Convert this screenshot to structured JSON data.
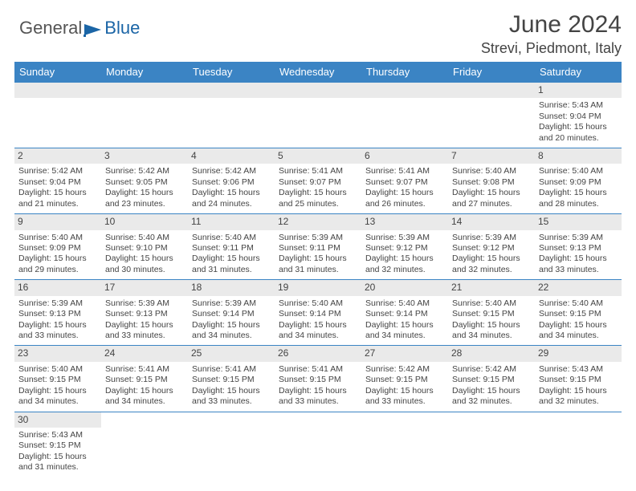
{
  "logo": {
    "text_gray": "General",
    "text_blue": "Blue"
  },
  "header": {
    "title": "June 2024",
    "location": "Strevi, Piedmont, Italy"
  },
  "colors": {
    "header_bar": "#3b84c4",
    "header_text": "#ffffff",
    "daynum_bg": "#eaeaea",
    "border": "#3b84c4",
    "logo_blue": "#1b65a6",
    "logo_gray": "#555555"
  },
  "day_names": [
    "Sunday",
    "Monday",
    "Tuesday",
    "Wednesday",
    "Thursday",
    "Friday",
    "Saturday"
  ],
  "calendar": {
    "first_weekday_index": 6,
    "days_in_month": 30,
    "days": [
      {
        "n": 1,
        "sunrise": "5:43 AM",
        "sunset": "9:04 PM",
        "daylight": "15 hours and 20 minutes."
      },
      {
        "n": 2,
        "sunrise": "5:42 AM",
        "sunset": "9:04 PM",
        "daylight": "15 hours and 21 minutes."
      },
      {
        "n": 3,
        "sunrise": "5:42 AM",
        "sunset": "9:05 PM",
        "daylight": "15 hours and 23 minutes."
      },
      {
        "n": 4,
        "sunrise": "5:42 AM",
        "sunset": "9:06 PM",
        "daylight": "15 hours and 24 minutes."
      },
      {
        "n": 5,
        "sunrise": "5:41 AM",
        "sunset": "9:07 PM",
        "daylight": "15 hours and 25 minutes."
      },
      {
        "n": 6,
        "sunrise": "5:41 AM",
        "sunset": "9:07 PM",
        "daylight": "15 hours and 26 minutes."
      },
      {
        "n": 7,
        "sunrise": "5:40 AM",
        "sunset": "9:08 PM",
        "daylight": "15 hours and 27 minutes."
      },
      {
        "n": 8,
        "sunrise": "5:40 AM",
        "sunset": "9:09 PM",
        "daylight": "15 hours and 28 minutes."
      },
      {
        "n": 9,
        "sunrise": "5:40 AM",
        "sunset": "9:09 PM",
        "daylight": "15 hours and 29 minutes."
      },
      {
        "n": 10,
        "sunrise": "5:40 AM",
        "sunset": "9:10 PM",
        "daylight": "15 hours and 30 minutes."
      },
      {
        "n": 11,
        "sunrise": "5:40 AM",
        "sunset": "9:11 PM",
        "daylight": "15 hours and 31 minutes."
      },
      {
        "n": 12,
        "sunrise": "5:39 AM",
        "sunset": "9:11 PM",
        "daylight": "15 hours and 31 minutes."
      },
      {
        "n": 13,
        "sunrise": "5:39 AM",
        "sunset": "9:12 PM",
        "daylight": "15 hours and 32 minutes."
      },
      {
        "n": 14,
        "sunrise": "5:39 AM",
        "sunset": "9:12 PM",
        "daylight": "15 hours and 32 minutes."
      },
      {
        "n": 15,
        "sunrise": "5:39 AM",
        "sunset": "9:13 PM",
        "daylight": "15 hours and 33 minutes."
      },
      {
        "n": 16,
        "sunrise": "5:39 AM",
        "sunset": "9:13 PM",
        "daylight": "15 hours and 33 minutes."
      },
      {
        "n": 17,
        "sunrise": "5:39 AM",
        "sunset": "9:13 PM",
        "daylight": "15 hours and 33 minutes."
      },
      {
        "n": 18,
        "sunrise": "5:39 AM",
        "sunset": "9:14 PM",
        "daylight": "15 hours and 34 minutes."
      },
      {
        "n": 19,
        "sunrise": "5:40 AM",
        "sunset": "9:14 PM",
        "daylight": "15 hours and 34 minutes."
      },
      {
        "n": 20,
        "sunrise": "5:40 AM",
        "sunset": "9:14 PM",
        "daylight": "15 hours and 34 minutes."
      },
      {
        "n": 21,
        "sunrise": "5:40 AM",
        "sunset": "9:15 PM",
        "daylight": "15 hours and 34 minutes."
      },
      {
        "n": 22,
        "sunrise": "5:40 AM",
        "sunset": "9:15 PM",
        "daylight": "15 hours and 34 minutes."
      },
      {
        "n": 23,
        "sunrise": "5:40 AM",
        "sunset": "9:15 PM",
        "daylight": "15 hours and 34 minutes."
      },
      {
        "n": 24,
        "sunrise": "5:41 AM",
        "sunset": "9:15 PM",
        "daylight": "15 hours and 34 minutes."
      },
      {
        "n": 25,
        "sunrise": "5:41 AM",
        "sunset": "9:15 PM",
        "daylight": "15 hours and 33 minutes."
      },
      {
        "n": 26,
        "sunrise": "5:41 AM",
        "sunset": "9:15 PM",
        "daylight": "15 hours and 33 minutes."
      },
      {
        "n": 27,
        "sunrise": "5:42 AM",
        "sunset": "9:15 PM",
        "daylight": "15 hours and 33 minutes."
      },
      {
        "n": 28,
        "sunrise": "5:42 AM",
        "sunset": "9:15 PM",
        "daylight": "15 hours and 32 minutes."
      },
      {
        "n": 29,
        "sunrise": "5:43 AM",
        "sunset": "9:15 PM",
        "daylight": "15 hours and 32 minutes."
      },
      {
        "n": 30,
        "sunrise": "5:43 AM",
        "sunset": "9:15 PM",
        "daylight": "15 hours and 31 minutes."
      }
    ],
    "labels": {
      "sunrise": "Sunrise:",
      "sunset": "Sunset:",
      "daylight": "Daylight:"
    }
  }
}
